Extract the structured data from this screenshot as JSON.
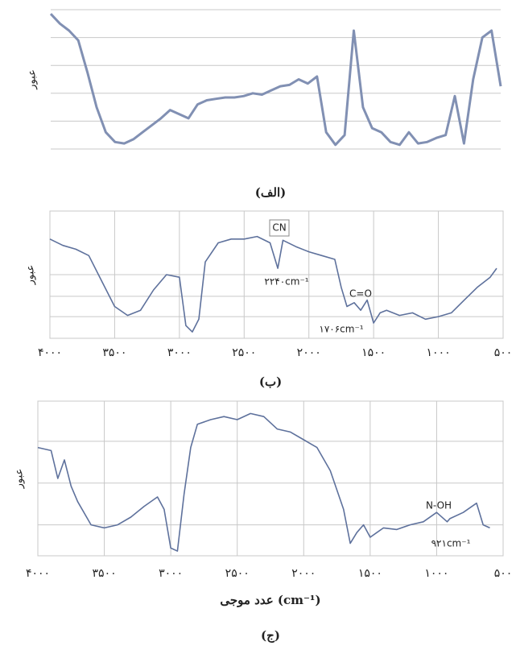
{
  "chart_data": [
    {
      "type": "line",
      "caption": "(الف)",
      "ylabel": "عبور",
      "color": "#8190b3",
      "values": [
        97,
        90,
        85,
        78,
        55,
        30,
        12,
        5,
        4,
        7,
        12,
        17,
        22,
        28,
        25,
        22,
        32,
        35,
        36,
        37,
        37,
        38,
        40,
        39,
        42,
        45,
        46,
        50,
        47,
        52,
        12,
        3,
        10,
        85,
        30,
        15,
        12,
        5,
        3,
        12,
        4,
        5,
        8,
        10,
        38,
        4,
        50,
        80,
        85,
        45
      ],
      "ylim": [
        0,
        100
      ],
      "ygrid": [
        0,
        20,
        40,
        60,
        80,
        100
      ]
    },
    {
      "type": "line",
      "caption": "(ب)",
      "ylabel": "عبور",
      "color": "#5e719c",
      "x": [
        4000,
        3900,
        3800,
        3700,
        3600,
        3500,
        3400,
        3300,
        3200,
        3100,
        3000,
        2950,
        2900,
        2850,
        2800,
        2700,
        2600,
        2500,
        2400,
        2300,
        2240,
        2200,
        2100,
        2000,
        1900,
        1800,
        1750,
        1706,
        1650,
        1600,
        1550,
        1500,
        1450,
        1400,
        1300,
        1200,
        1100,
        1000,
        900,
        800,
        700,
        600,
        550
      ],
      "values": [
        78,
        73,
        70,
        65,
        45,
        25,
        18,
        22,
        38,
        50,
        48,
        10,
        5,
        15,
        60,
        75,
        78,
        78,
        80,
        75,
        55,
        77,
        72,
        68,
        65,
        62,
        40,
        25,
        28,
        22,
        30,
        12,
        20,
        22,
        18,
        20,
        15,
        17,
        20,
        30,
        40,
        48,
        55
      ],
      "xlim": [
        4000,
        500
      ],
      "ylim": [
        0,
        100
      ],
      "ygrid": [
        17,
        33,
        50
      ],
      "xticks": [
        {
          "value": 4000,
          "label": "۴۰۰۰"
        },
        {
          "value": 3500,
          "label": "۳۵۰۰"
        },
        {
          "value": 3000,
          "label": "۳۰۰۰"
        },
        {
          "value": 2500,
          "label": "۲۵۰۰"
        },
        {
          "value": 2000,
          "label": "۲۰۰۰"
        },
        {
          "value": 1500,
          "label": "۱۵۰۰"
        },
        {
          "value": 1000,
          "label": "۱۰۰۰"
        },
        {
          "value": 500,
          "label": "۵۰۰"
        }
      ],
      "annotations": [
        "CN",
        "۲۲۴۰cm⁻¹",
        "C=O",
        "۱۷۰۶cm⁻¹"
      ]
    },
    {
      "type": "line",
      "caption": "(ج)",
      "ylabel": "عبور",
      "xlabel": "عدد موجی (cm⁻¹)",
      "color": "#5e719c",
      "x": [
        4000,
        3900,
        3850,
        3800,
        3750,
        3700,
        3600,
        3500,
        3400,
        3300,
        3200,
        3100,
        3050,
        3000,
        2950,
        2900,
        2850,
        2800,
        2700,
        2600,
        2500,
        2400,
        2300,
        2200,
        2100,
        2000,
        1900,
        1800,
        1700,
        1650,
        1600,
        1550,
        1500,
        1450,
        1400,
        1300,
        1200,
        1100,
        1000,
        921,
        900,
        800,
        700,
        650,
        600
      ],
      "values": [
        70,
        68,
        50,
        62,
        45,
        35,
        20,
        18,
        20,
        25,
        32,
        38,
        30,
        5,
        3,
        40,
        70,
        85,
        88,
        90,
        88,
        92,
        90,
        82,
        80,
        75,
        70,
        55,
        30,
        8,
        15,
        20,
        12,
        15,
        18,
        17,
        20,
        22,
        28,
        22,
        24,
        28,
        34,
        20,
        18
      ],
      "xlim": [
        4000,
        500
      ],
      "ylim": [
        0,
        100
      ],
      "ygrid": [
        20,
        47,
        74
      ],
      "xticks": [
        {
          "value": 4000,
          "label": "۴۰۰۰"
        },
        {
          "value": 3500,
          "label": "۳۵۰۰"
        },
        {
          "value": 3000,
          "label": "۳۰۰۰"
        },
        {
          "value": 2500,
          "label": "۲۵۰۰"
        },
        {
          "value": 2000,
          "label": "۲۰۰۰"
        },
        {
          "value": 1500,
          "label": "۱۵۰۰"
        },
        {
          "value": 1000,
          "label": "۱۰۰۰"
        },
        {
          "value": 500,
          "label": "۵۰۰"
        }
      ],
      "annotations": [
        "N-OH",
        "۹۲۱cm⁻¹"
      ]
    }
  ]
}
